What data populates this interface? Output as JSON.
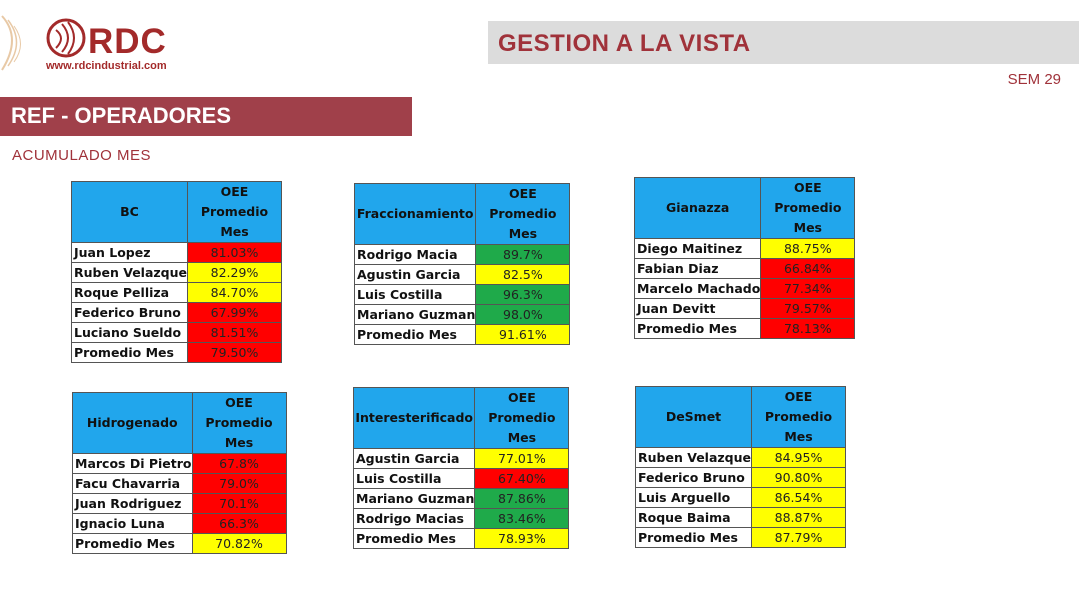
{
  "header": {
    "logo_text": "RDC",
    "logo_url": "www.rdcindustrial.com",
    "title": "GESTION A LA VISTA",
    "week": "SEM 29"
  },
  "section": {
    "title": "REF - OPERADORES",
    "subtitle": "ACUMULADO MES"
  },
  "colors": {
    "red": "#ff0000",
    "yellow": "#ffff00",
    "green": "#1faa4a",
    "header": "#21a6ec",
    "brand": "#a32a2a"
  },
  "tables": [
    {
      "area": "BC",
      "metric": "OEE Promedio Mes",
      "rows": [
        {
          "name": "Juan Lopez",
          "value": "81.03%",
          "status": "red"
        },
        {
          "name": "Ruben Velazque",
          "value": "82.29%",
          "status": "yellow"
        },
        {
          "name": "Roque Pelliza",
          "value": "84.70%",
          "status": "yellow"
        },
        {
          "name": "Federico Bruno",
          "value": "67.99%",
          "status": "red"
        },
        {
          "name": "Luciano Sueldo",
          "value": "81.51%",
          "status": "red"
        },
        {
          "name": "Promedio Mes",
          "value": "79.50%",
          "status": "red"
        }
      ]
    },
    {
      "area": "Fraccionamiento",
      "metric": "OEE Promedio Mes",
      "rows": [
        {
          "name": "Rodrigo Macia",
          "value": "89.7%",
          "status": "green"
        },
        {
          "name": "Agustin Garcia",
          "value": "82.5%",
          "status": "yellow"
        },
        {
          "name": "Luis Costilla",
          "value": "96.3%",
          "status": "green"
        },
        {
          "name": "Mariano Guzman",
          "value": "98.0%",
          "status": "green"
        },
        {
          "name": "Promedio Mes",
          "value": "91.61%",
          "status": "yellow"
        }
      ]
    },
    {
      "area": "Gianazza",
      "metric": "OEE Promedio Mes",
      "rows": [
        {
          "name": "Diego Maitinez",
          "value": "88.75%",
          "status": "yellow"
        },
        {
          "name": "Fabian Diaz",
          "value": "66.84%",
          "status": "red"
        },
        {
          "name": "Marcelo Machado",
          "value": "77.34%",
          "status": "red"
        },
        {
          "name": "Juan Devitt",
          "value": "79.57%",
          "status": "red"
        },
        {
          "name": "Promedio Mes",
          "value": "78.13%",
          "status": "red"
        }
      ]
    },
    {
      "area": "Hidrogenado",
      "metric": "OEE Promedio Mes",
      "rows": [
        {
          "name": "Marcos Di Pietro",
          "value": "67.8%",
          "status": "red"
        },
        {
          "name": "Facu Chavarria",
          "value": "79.0%",
          "status": "red"
        },
        {
          "name": "Juan Rodriguez",
          "value": "70.1%",
          "status": "red"
        },
        {
          "name": "Ignacio Luna",
          "value": "66.3%",
          "status": "red"
        },
        {
          "name": "Promedio Mes",
          "value": "70.82%",
          "status": "yellow"
        }
      ]
    },
    {
      "area": "Interesterificado",
      "metric": "OEE Promedio Mes",
      "rows": [
        {
          "name": "Agustin Garcia",
          "value": "77.01%",
          "status": "yellow"
        },
        {
          "name": "Luis Costilla",
          "value": "67.40%",
          "status": "red"
        },
        {
          "name": "Mariano Guzman",
          "value": "87.86%",
          "status": "green"
        },
        {
          "name": "Rodrigo Macias",
          "value": "83.46%",
          "status": "green"
        },
        {
          "name": "Promedio Mes",
          "value": "78.93%",
          "status": "yellow"
        }
      ]
    },
    {
      "area": "DeSmet",
      "metric": "OEE Promedio Mes",
      "rows": [
        {
          "name": "Ruben Velazque",
          "value": "84.95%",
          "status": "yellow"
        },
        {
          "name": "Federico Bruno",
          "value": "90.80%",
          "status": "yellow"
        },
        {
          "name": "Luis Arguello",
          "value": "86.54%",
          "status": "yellow"
        },
        {
          "name": "Roque Baima",
          "value": "88.87%",
          "status": "yellow"
        },
        {
          "name": "Promedio Mes",
          "value": "87.79%",
          "status": "yellow"
        }
      ]
    }
  ]
}
